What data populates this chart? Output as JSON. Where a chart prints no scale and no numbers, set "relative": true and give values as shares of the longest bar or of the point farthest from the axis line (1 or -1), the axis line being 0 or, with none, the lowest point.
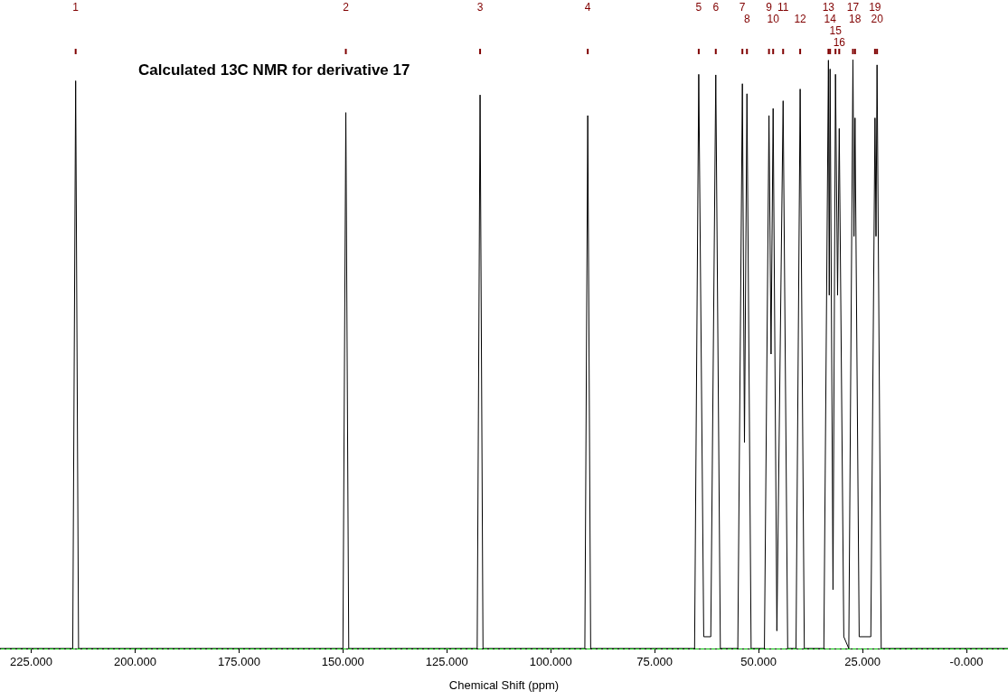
{
  "chart_data": {
    "type": "line",
    "title": "Calculated 13C NMR for derivative 17",
    "xlabel": "Chemical Shift (ppm)",
    "color": "#000000",
    "relative": true,
    "xlim": [
      232.5,
      -10
    ],
    "xticks": [
      {
        "value": 225,
        "label": "225.000"
      },
      {
        "value": 200,
        "label": "200.000"
      },
      {
        "value": 175,
        "label": "175.000"
      },
      {
        "value": 150,
        "label": "150.000"
      },
      {
        "value": 125,
        "label": "125.000"
      },
      {
        "value": 100,
        "label": "100.000"
      },
      {
        "value": 75,
        "label": "75.000"
      },
      {
        "value": 50,
        "label": "50.000"
      },
      {
        "value": 25,
        "label": "25.000"
      },
      {
        "value": 0,
        "label": "-0.000"
      }
    ],
    "x": [
      232.5,
      215.0,
      214.3,
      213.6,
      150.0,
      149.3,
      148.6,
      117.7,
      117.0,
      116.3,
      91.8,
      91.1,
      90.4,
      65.4,
      64.4,
      63.2,
      61.5,
      60.3,
      59.2,
      55.0,
      53.9,
      53.4,
      52.8,
      51.8,
      48.6,
      47.5,
      47.0,
      46.5,
      45.6,
      44.1,
      43.0,
      41.0,
      40.0,
      39.0,
      34.3,
      33.2,
      33.0,
      32.8,
      32.1,
      31.5,
      31.0,
      30.6,
      29.5,
      28.3,
      27.3,
      27.05,
      26.8,
      25.8,
      23.0,
      22.0,
      21.75,
      21.5,
      20.5,
      -10
    ],
    "values": [
      0,
      0,
      0.964,
      0,
      0,
      0.91,
      0,
      0,
      0.94,
      0,
      0,
      0.905,
      0,
      0,
      0.975,
      0.02,
      0.02,
      0.974,
      0,
      0,
      0.959,
      0.35,
      0.942,
      0,
      0,
      0.905,
      0.5,
      0.917,
      0.03,
      0.93,
      0,
      0,
      0.95,
      0,
      0,
      0.999,
      0.6,
      0.984,
      0.1,
      0.975,
      0.6,
      0.883,
      0.02,
      0,
      1,
      0.7,
      0.901,
      0.02,
      0.02,
      0.901,
      0.7,
      0.991,
      0,
      0
    ],
    "ref_lines": [
      {
        "axis": "y",
        "value": 0,
        "color": "#00c000",
        "line_style": "dashed"
      }
    ],
    "annotations": [
      "1",
      "2",
      "3",
      "4",
      "5",
      "6",
      "7",
      "8",
      "9",
      "10",
      "11",
      "12",
      "13",
      "14",
      "15",
      "16",
      "17",
      "18",
      "19",
      "20"
    ]
  }
}
